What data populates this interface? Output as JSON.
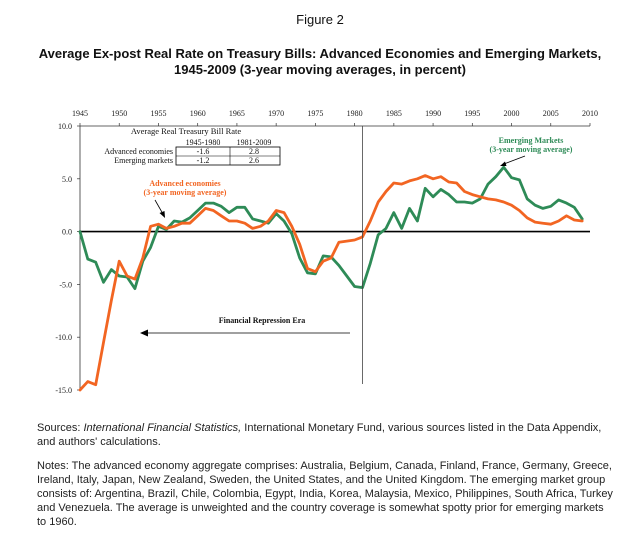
{
  "figure_label": "Figure 2",
  "title": "Average Ex-post Real Rate on Treasury Bills: Advanced Economies and Emerging Markets, 1945-2009 (3-year moving averages, in percent)",
  "sources": {
    "prefix": "Sources: ",
    "italic": "International Financial Statistics,",
    "rest": " International Monetary Fund, various sources listed in the Data Appendix, and authors' calculations."
  },
  "notes": "Notes: The advanced economy aggregate comprises: Australia, Belgium, Canada, Finland, France, Germany, Greece, Ireland, Italy, Japan, New Zealand, Sweden, the United States, and the United Kingdom. The emerging market group consists of: Argentina, Brazil, Chile, Colombia, Egypt, India, Korea, Malaysia, Mexico, Philippines, South Africa, Turkey and Venezuela. The average is unweighted and the country coverage is somewhat spotty prior for emerging markets to 1960.",
  "colors": {
    "advanced": "#f26522",
    "emerging": "#2e8b57",
    "axis": "#333333"
  },
  "chart_data": {
    "type": "line",
    "xlim": [
      1945,
      2010
    ],
    "ylim": [
      -15,
      10
    ],
    "x_ticks": [
      1945,
      1950,
      1955,
      1960,
      1965,
      1970,
      1975,
      1980,
      1985,
      1990,
      1995,
      2000,
      2005,
      2010
    ],
    "y_ticks": [
      {
        "value": 10,
        "label": "10.0"
      },
      {
        "value": 5,
        "label": "5.0"
      },
      {
        "value": 0,
        "label": "0.0"
      },
      {
        "value": -5,
        "label": "-5.0"
      },
      {
        "value": -10,
        "label": "-10.0"
      },
      {
        "value": -15,
        "label": "-15.0"
      }
    ],
    "series": [
      {
        "name": "Advanced economies",
        "key": "advanced",
        "x": [
          1945,
          1946,
          1947,
          1948,
          1949,
          1950,
          1951,
          1952,
          1953,
          1954,
          1955,
          1956,
          1957,
          1958,
          1959,
          1960,
          1961,
          1962,
          1963,
          1964,
          1965,
          1966,
          1967,
          1968,
          1969,
          1970,
          1971,
          1972,
          1973,
          1974,
          1975,
          1976,
          1977,
          1978,
          1979,
          1980,
          1981,
          1982,
          1983,
          1984,
          1985,
          1986,
          1987,
          1988,
          1989,
          1990,
          1991,
          1992,
          1993,
          1994,
          1995,
          1996,
          1997,
          1998,
          1999,
          2000,
          2001,
          2002,
          2003,
          2004,
          2005,
          2006,
          2007,
          2008,
          2009
        ],
        "y": [
          -15.0,
          -14.2,
          -14.5,
          -10.5,
          -6.5,
          -2.8,
          -4.2,
          -4.5,
          -2.5,
          0.5,
          0.7,
          0.3,
          0.5,
          0.8,
          0.8,
          1.5,
          2.2,
          2.0,
          1.5,
          1.0,
          1.0,
          0.8,
          0.3,
          0.5,
          1.0,
          2.0,
          1.8,
          0.5,
          -1.2,
          -3.5,
          -3.8,
          -2.8,
          -2.5,
          -1.0,
          -0.9,
          -0.8,
          -0.5,
          1.0,
          2.8,
          3.8,
          4.6,
          4.5,
          4.8,
          5.0,
          5.3,
          5.0,
          5.2,
          4.7,
          4.6,
          3.8,
          3.5,
          3.3,
          3.1,
          3.0,
          2.8,
          2.5,
          2.0,
          1.3,
          0.9,
          0.8,
          0.7,
          1.0,
          1.5,
          1.1,
          1.0
        ]
      },
      {
        "name": "Emerging Markets",
        "key": "emerging",
        "x": [
          1945,
          1946,
          1947,
          1948,
          1949,
          1950,
          1951,
          1952,
          1953,
          1954,
          1955,
          1956,
          1957,
          1958,
          1959,
          1960,
          1961,
          1962,
          1963,
          1964,
          1965,
          1966,
          1967,
          1968,
          1969,
          1970,
          1971,
          1972,
          1973,
          1974,
          1975,
          1976,
          1977,
          1978,
          1979,
          1980,
          1981,
          1982,
          1983,
          1984,
          1985,
          1986,
          1987,
          1988,
          1989,
          1990,
          1991,
          1992,
          1993,
          1994,
          1995,
          1996,
          1997,
          1998,
          1999,
          2000,
          2001,
          2002,
          2003,
          2004,
          2005,
          2006,
          2007,
          2008,
          2009
        ],
        "y": [
          0.0,
          -2.6,
          -2.9,
          -4.8,
          -3.6,
          -4.2,
          -4.3,
          -5.4,
          -2.8,
          -1.5,
          0.5,
          0.2,
          1.0,
          0.9,
          1.3,
          2.0,
          2.7,
          2.7,
          2.4,
          1.8,
          2.3,
          2.3,
          1.2,
          1.0,
          0.8,
          1.7,
          1.0,
          -0.2,
          -2.5,
          -3.9,
          -4.0,
          -2.3,
          -2.4,
          -3.2,
          -4.2,
          -5.2,
          -5.3,
          -3.0,
          -0.3,
          0.3,
          1.8,
          0.3,
          2.2,
          1.0,
          4.1,
          3.3,
          4.0,
          3.5,
          2.8,
          2.8,
          2.7,
          3.1,
          4.5,
          5.2,
          6.1,
          5.1,
          4.9,
          3.1,
          2.5,
          2.2,
          2.4,
          3.0,
          2.7,
          2.3,
          1.2
        ]
      }
    ],
    "legend_labels": {
      "advanced_line1": "Advanced economies",
      "advanced_line2": "(3-year moving average)",
      "emerging_line1": "Emerging Markets",
      "emerging_line2": "(3-year moving average)"
    },
    "annotation": {
      "text": "Financial Repression Era",
      "divider_year": 1981
    },
    "inset_table": {
      "title": "Average Real Treasury Bill Rate",
      "col_headers": [
        "1945-1980",
        "1981-2009"
      ],
      "rows": [
        {
          "label": "Advanced economies",
          "values": [
            "-1.6",
            "2.8"
          ]
        },
        {
          "label": "Emerging markets",
          "values": [
            "-1.2",
            "2.6"
          ]
        }
      ]
    }
  }
}
